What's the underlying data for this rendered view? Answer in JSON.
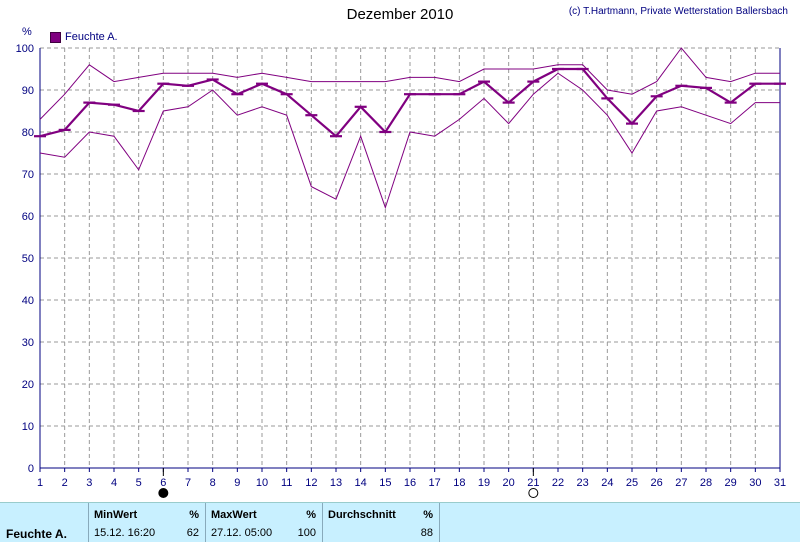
{
  "title": "Dezember 2010",
  "copyright": "(c) T.Hartmann, Private Wetterstation Ballersbach",
  "unit": "%",
  "colors": {
    "series": "#800080",
    "axis": "#000080",
    "grid": "#9a9a9a",
    "footer_bg": "#c8f0ff"
  },
  "chart_data": {
    "type": "line",
    "title": "Dezember 2010",
    "ylabel": "%",
    "xlabel": "",
    "x": [
      1,
      2,
      3,
      4,
      5,
      6,
      7,
      8,
      9,
      10,
      11,
      12,
      13,
      14,
      15,
      16,
      17,
      18,
      19,
      20,
      21,
      22,
      23,
      24,
      25,
      26,
      27,
      28,
      29,
      30,
      31
    ],
    "ylim": [
      0,
      100
    ],
    "yticks": [
      0,
      10,
      20,
      30,
      40,
      50,
      60,
      70,
      80,
      90,
      100
    ],
    "grid": true,
    "legend": "top-left",
    "series": [
      {
        "name": "Feuchte A.",
        "role": "mean",
        "values": [
          79,
          80.5,
          87,
          86.5,
          85,
          91.5,
          91,
          92.5,
          89,
          91.5,
          89,
          84,
          79,
          86,
          80,
          89,
          89,
          89,
          92,
          87,
          92,
          95,
          95,
          88,
          82,
          88.5,
          91,
          90.5,
          87,
          91.5,
          91.5
        ]
      },
      {
        "name": "",
        "role": "max",
        "values": [
          83,
          89,
          96,
          92,
          93,
          94,
          94,
          94,
          93,
          94,
          93,
          92,
          92,
          92,
          92,
          93,
          93,
          92,
          95,
          95,
          95,
          96,
          96,
          90,
          89,
          92,
          100,
          93,
          92,
          94,
          94
        ]
      },
      {
        "name": "",
        "role": "min",
        "values": [
          75,
          74,
          80,
          79,
          71,
          85,
          86,
          90,
          84,
          86,
          84,
          67,
          64,
          79,
          62,
          80,
          79,
          83,
          88,
          82,
          89,
          94,
          90,
          84,
          75,
          85,
          86,
          84,
          82,
          87,
          87
        ]
      }
    ],
    "moon_markers": [
      {
        "x": 6,
        "phase": "new"
      },
      {
        "x": 21,
        "phase": "full"
      }
    ]
  },
  "footer": {
    "row_label": "Feuchte A.",
    "min": {
      "label": "MinWert",
      "unit": "%",
      "when": "15.12.  16:20",
      "value": "62"
    },
    "max": {
      "label": "MaxWert",
      "unit": "%",
      "when": "27.12.  05:00",
      "value": "100"
    },
    "avg": {
      "label": "Durchschnitt",
      "unit": "%",
      "value": "88"
    }
  }
}
